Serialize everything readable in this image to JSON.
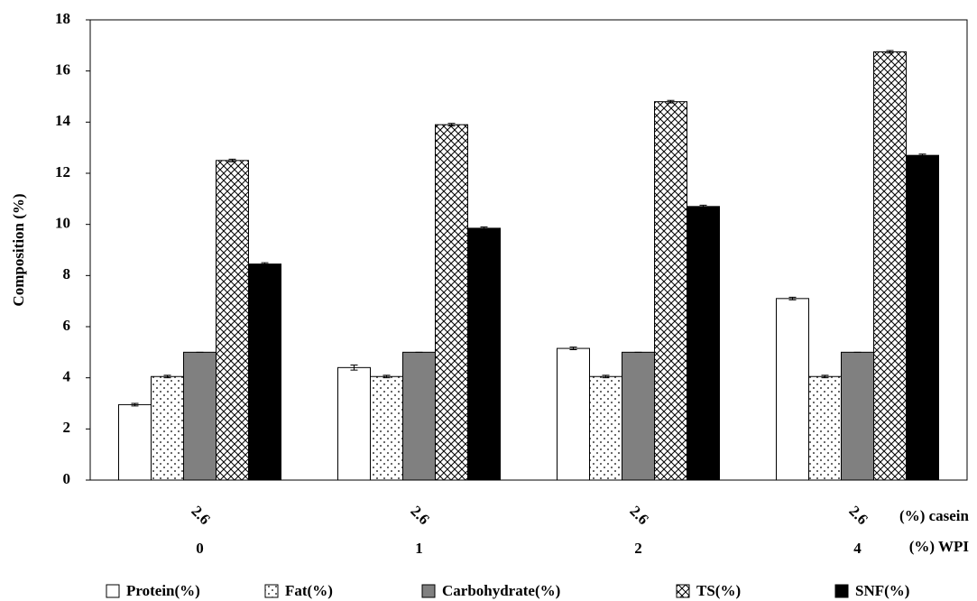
{
  "chart_data": {
    "type": "bar",
    "y_label": "Composition (%)",
    "categories": [
      "0",
      "1",
      "2",
      "4"
    ],
    "casein_labels": [
      "2.6",
      "2.6",
      "2.6",
      "2.6"
    ],
    "x_level_names": [
      "(%) casein",
      "(%) WPI"
    ],
    "series": [
      {
        "name": "Protein(%)",
        "color": "#ffffff",
        "pattern": "none",
        "values": [
          2.95,
          4.4,
          5.15,
          7.1
        ],
        "errors": [
          0.05,
          0.1,
          0.05,
          0.05
        ]
      },
      {
        "name": "Fat(%)",
        "color": "#ffffff",
        "pattern": "dots",
        "values": [
          4.05,
          4.05,
          4.05,
          4.05
        ],
        "errors": [
          0.05,
          0.05,
          0.05,
          0.05
        ]
      },
      {
        "name": "Carbohydrate(%)",
        "color": "#808080",
        "pattern": "none",
        "values": [
          5.0,
          5.0,
          5.0,
          5.0
        ],
        "errors": [
          0,
          0,
          0,
          0
        ]
      },
      {
        "name": "TS(%)",
        "color": "#ffffff",
        "pattern": "crosshatch",
        "values": [
          12.5,
          13.9,
          14.8,
          16.75
        ],
        "errors": [
          0.05,
          0.05,
          0.05,
          0.05
        ]
      },
      {
        "name": "SNF(%)",
        "color": "#000000",
        "pattern": "none",
        "values": [
          8.45,
          9.85,
          10.7,
          12.7
        ],
        "errors": [
          0.05,
          0.05,
          0.05,
          0.05
        ]
      }
    ],
    "ylim": [
      0,
      18
    ],
    "yticks": [
      0,
      2,
      4,
      6,
      8,
      10,
      12,
      14,
      16,
      18
    ],
    "grid": false
  }
}
